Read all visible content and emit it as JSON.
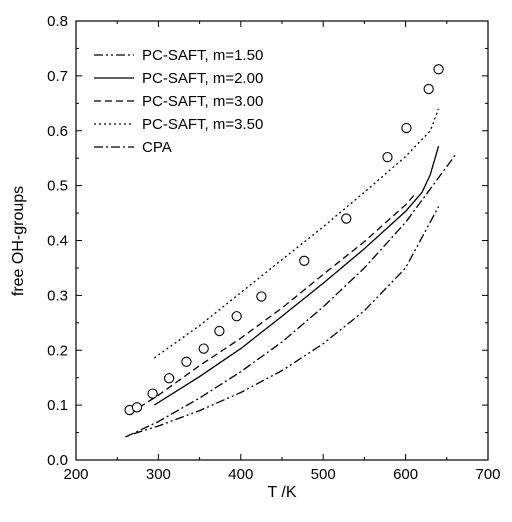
{
  "chart_data": {
    "type": "line",
    "xlabel": "T /K",
    "ylabel": "free OH-groups",
    "xlim": [
      200,
      700
    ],
    "ylim": [
      0.0,
      0.8
    ],
    "xticks": [
      "200",
      "300",
      "400",
      "500",
      "600",
      "700"
    ],
    "yticks": [
      "0.0",
      "0.1",
      "0.2",
      "0.3",
      "0.4",
      "0.5",
      "0.6",
      "0.7",
      "0.8"
    ],
    "grid": false,
    "legend_position": "top-left",
    "series": [
      {
        "name": "PC-SAFT, m=1.50",
        "style": "dash-dot-dot",
        "x": [
          270,
          300,
          350,
          400,
          450,
          500,
          550,
          600,
          640
        ],
        "y": [
          0.048,
          0.062,
          0.09,
          0.123,
          0.163,
          0.212,
          0.272,
          0.35,
          0.462
        ]
      },
      {
        "name": "PC-SAFT, m=2.00",
        "style": "solid",
        "x": [
          295,
          350,
          400,
          450,
          500,
          550,
          600,
          620,
          630,
          640
        ],
        "y": [
          0.1,
          0.152,
          0.203,
          0.262,
          0.322,
          0.385,
          0.453,
          0.488,
          0.52,
          0.572
        ]
      },
      {
        "name": "PC-SAFT, m=3.00",
        "style": "dashed",
        "x": [
          265,
          300,
          350,
          400,
          450,
          500,
          550,
          600,
          610
        ],
        "y": [
          0.085,
          0.118,
          0.172,
          0.222,
          0.277,
          0.338,
          0.398,
          0.465,
          0.482
        ]
      },
      {
        "name": "PC-SAFT, m=3.50",
        "style": "dotted",
        "x": [
          295,
          350,
          400,
          450,
          500,
          550,
          600,
          630,
          640
        ],
        "y": [
          0.186,
          0.245,
          0.305,
          0.365,
          0.425,
          0.488,
          0.553,
          0.6,
          0.64
        ]
      },
      {
        "name": "CPA",
        "style": "dash-dot",
        "x": [
          260,
          300,
          350,
          400,
          450,
          500,
          550,
          600,
          660
        ],
        "y": [
          0.042,
          0.07,
          0.113,
          0.161,
          0.215,
          0.279,
          0.35,
          0.433,
          0.555
        ]
      }
    ],
    "points": {
      "marker": "open-circle",
      "x": [
        265,
        274,
        293,
        313,
        334,
        355,
        374,
        395,
        425,
        477,
        528,
        578,
        601,
        628,
        640
      ],
      "y": [
        0.091,
        0.096,
        0.121,
        0.149,
        0.179,
        0.203,
        0.235,
        0.262,
        0.298,
        0.363,
        0.44,
        0.552,
        0.605,
        0.676,
        0.712
      ]
    }
  }
}
